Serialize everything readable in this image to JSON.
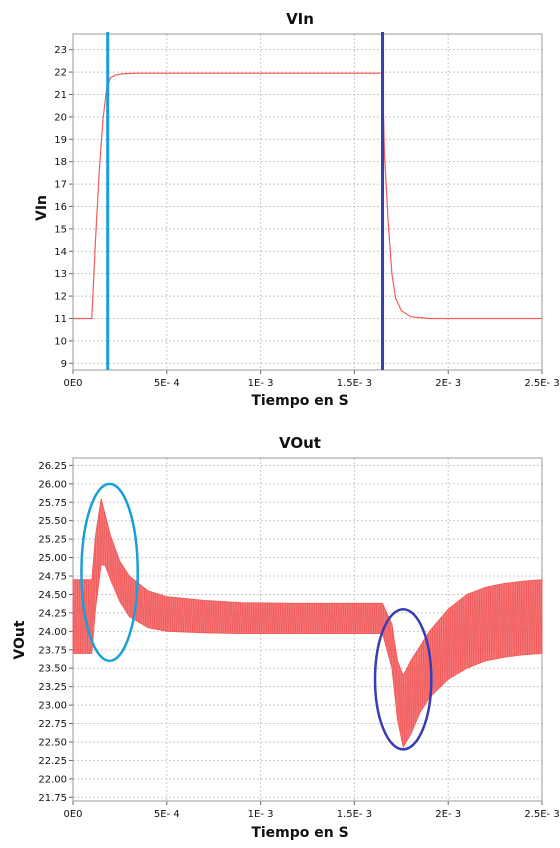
{
  "colors": {
    "trace": "#f25a5a",
    "marker_light": "#1a9fd9",
    "marker_dark": "#3b3bb5"
  },
  "chart_data": [
    {
      "type": "line",
      "title": "VIn",
      "xlabel": "Tiempo en S",
      "ylabel": "VIn",
      "xlim": [
        0,
        0.0025
      ],
      "ylim": [
        8.7,
        23.7
      ],
      "x_ticks": [
        0,
        0.0005,
        0.001,
        0.0015,
        0.002,
        0.0025
      ],
      "x_tick_labels": [
        "0E0",
        "5E- 4",
        "1E- 3",
        "1.5E- 3",
        "2E- 3",
        "2.5E- 3"
      ],
      "y_ticks": [
        9,
        10,
        11,
        12,
        13,
        14,
        15,
        16,
        17,
        18,
        19,
        20,
        21,
        22,
        23
      ],
      "y_tick_labels": [
        "9",
        "10",
        "11",
        "12",
        "13",
        "14",
        "15",
        "16",
        "17",
        "18",
        "19",
        "20",
        "21",
        "22",
        "23"
      ],
      "grid": true,
      "series": [
        {
          "x": [
            0,
            0.0001,
            0.00012,
            0.00014,
            0.00016,
            0.00018,
            0.0002,
            0.00023,
            0.00027,
            0.00035,
            0.0005,
            0.0008,
            0.00165,
            0.00166,
            0.00168,
            0.0017,
            0.00172,
            0.00175,
            0.0018,
            0.0019,
            0.002,
            0.0025
          ],
          "values": [
            11,
            11,
            14.5,
            17.6,
            19.9,
            21.3,
            21.75,
            21.88,
            21.93,
            21.95,
            21.95,
            21.95,
            21.95,
            18.4,
            15.3,
            13.0,
            11.9,
            11.35,
            11.08,
            11.0,
            11.0,
            11.0
          ]
        }
      ],
      "markers": [
        {
          "x": 0.000185,
          "color": "marker_light"
        },
        {
          "x": 0.00165,
          "color": "marker_dark"
        }
      ]
    },
    {
      "type": "line",
      "title": "VOut",
      "xlabel": "Tiempo en S",
      "ylabel": "VOut",
      "xlim": [
        0,
        0.0025
      ],
      "ylim": [
        21.7,
        26.35
      ],
      "x_ticks": [
        0,
        0.0005,
        0.001,
        0.0015,
        0.002,
        0.0025
      ],
      "x_tick_labels": [
        "0E0",
        "5E- 4",
        "1E- 3",
        "1.5E- 3",
        "2E- 3",
        "2.5E- 3"
      ],
      "y_ticks": [
        21.75,
        22.0,
        22.25,
        22.5,
        22.75,
        23.0,
        23.25,
        23.5,
        23.75,
        24.0,
        24.25,
        24.5,
        24.75,
        25.0,
        25.25,
        25.5,
        25.75,
        26.0,
        26.25
      ],
      "y_tick_labels": [
        "21.75",
        "22.00",
        "22.25",
        "22.50",
        "22.75",
        "23.00",
        "23.25",
        "23.50",
        "23.75",
        "24.00",
        "24.25",
        "24.50",
        "24.75",
        "25.00",
        "25.25",
        "25.50",
        "25.75",
        "26.00",
        "26.25"
      ],
      "grid": true,
      "series": [
        {
          "name": "",
          "x": [
            0,
            0.0001,
            0.00012,
            0.00015,
            0.00017,
            0.0002,
            0.00025,
            0.0003,
            0.0004,
            0.0005,
            0.0007,
            0.0009,
            0.0012,
            0.00165,
            0.0017,
            0.00173,
            0.00176,
            0.0018,
            0.00185,
            0.0019,
            0.002,
            0.0021,
            0.0022,
            0.0023,
            0.0024,
            0.0025
          ],
          "upper": [
            24.7,
            24.7,
            25.3,
            25.8,
            25.6,
            25.3,
            24.95,
            24.75,
            24.55,
            24.47,
            24.42,
            24.39,
            24.38,
            24.38,
            24.1,
            23.6,
            23.4,
            23.6,
            23.8,
            24.0,
            24.3,
            24.5,
            24.6,
            24.65,
            24.68,
            24.7
          ],
          "lower": [
            23.7,
            23.7,
            24.3,
            24.9,
            24.9,
            24.7,
            24.4,
            24.2,
            24.05,
            24.0,
            23.98,
            23.97,
            23.97,
            23.97,
            23.5,
            22.8,
            22.43,
            22.6,
            22.9,
            23.1,
            23.35,
            23.5,
            23.6,
            23.65,
            23.68,
            23.7
          ]
        }
      ],
      "ellipses": [
        {
          "cx": 0.000195,
          "cy": 24.8,
          "rx": 0.00015,
          "ry": 1.2,
          "color": "marker_light"
        },
        {
          "cx": 0.00176,
          "cy": 23.35,
          "rx": 0.00015,
          "ry": 0.95,
          "color": "marker_dark"
        }
      ]
    }
  ]
}
